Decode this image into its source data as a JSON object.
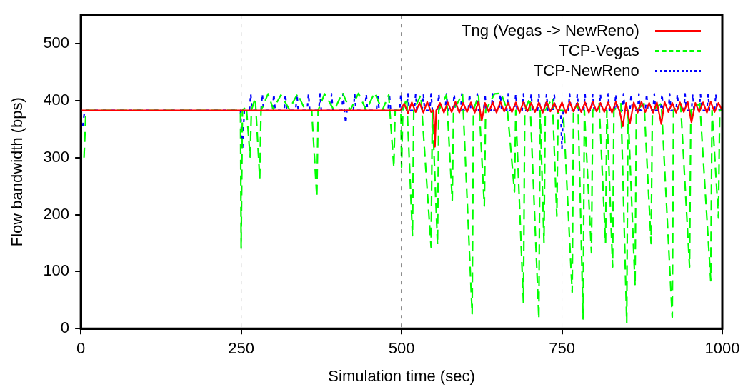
{
  "chart_data": {
    "type": "line",
    "xlabel": "Simulation time (sec)",
    "ylabel": "Flow bandwidth (bps)",
    "xlim": [
      0,
      1000
    ],
    "xticks": [
      0,
      250,
      500,
      750,
      1000
    ],
    "ylim": [
      0,
      550
    ],
    "yticks": [
      0,
      100,
      200,
      300,
      400,
      500
    ],
    "grid": false,
    "legend": "top right",
    "marker": "none",
    "ref_lines": [
      {
        "axis": "x",
        "value": 250,
        "color": "#000000",
        "line_style": "dotted"
      },
      {
        "axis": "x",
        "value": 500,
        "color": "#000000",
        "line_style": "dotted"
      },
      {
        "axis": "x",
        "value": 750,
        "color": "#000000",
        "line_style": "dotted"
      }
    ],
    "series": [
      {
        "name": "Tng (Vegas -> NewReno)",
        "color": "#ff0000",
        "line_style": "solid",
        "x": [
          0,
          498,
          504,
          510,
          516,
          522,
          528,
          534,
          540,
          546,
          550,
          552,
          554,
          560,
          566,
          572,
          578,
          584,
          590,
          596,
          602,
          608,
          614,
          620,
          625,
          630,
          636,
          642,
          648,
          654,
          660,
          666,
          672,
          678,
          684,
          690,
          696,
          702,
          708,
          714,
          720,
          726,
          732,
          738,
          744,
          750,
          756,
          762,
          768,
          774,
          780,
          786,
          792,
          798,
          804,
          810,
          816,
          822,
          828,
          834,
          840,
          845,
          850,
          856,
          862,
          868,
          874,
          880,
          886,
          892,
          898,
          905,
          910,
          916,
          922,
          928,
          934,
          940,
          946,
          952,
          958,
          964,
          970,
          976,
          982,
          988,
          994,
          1000
        ],
        "values": [
          383,
          383,
          395,
          378,
          397,
          380,
          396,
          379,
          398,
          380,
          383,
          319,
          383,
          396,
          379,
          397,
          380,
          398,
          379,
          396,
          380,
          397,
          379,
          398,
          365,
          396,
          380,
          397,
          379,
          398,
          381,
          396,
          380,
          397,
          379,
          398,
          381,
          396,
          380,
          397,
          379,
          398,
          381,
          396,
          380,
          397,
          379,
          398,
          381,
          396,
          380,
          397,
          379,
          398,
          381,
          396,
          380,
          397,
          379,
          398,
          381,
          355,
          396,
          360,
          397,
          379,
          398,
          380,
          396,
          379,
          397,
          359,
          398,
          380,
          396,
          379,
          397,
          380,
          398,
          362,
          396,
          380,
          397,
          379,
          398,
          380,
          396,
          383
        ]
      },
      {
        "name": "TCP-Vegas",
        "color": "#00ff00",
        "line_style": "dashed",
        "x": [
          5,
          8,
          249,
          250,
          252,
          258,
          264,
          266,
          272,
          279,
          281,
          292,
          300,
          312,
          325,
          338,
          350,
          360,
          368,
          370,
          380,
          395,
          408,
          420,
          433,
          445,
          458,
          470,
          480,
          488,
          490,
          499,
          500,
          502,
          508,
          517,
          519,
          530,
          546,
          548,
          556,
          558,
          570,
          579,
          581,
          595,
          610,
          612,
          620,
          629,
          631,
          645,
          655,
          665,
          676,
          678,
          690,
          692,
          700,
          714,
          716,
          722,
          724,
          735,
          742,
          744,
          752,
          766,
          768,
          775,
          783,
          785,
          796,
          798,
          808,
          818,
          820,
          829,
          831,
          842,
          851,
          853,
          864,
          866,
          878,
          889,
          891,
          905,
          922,
          924,
          935,
          949,
          951,
          965,
          982,
          984,
          994,
          996,
          1000
        ],
        "values": [
          300,
          383,
          383,
          141,
          383,
          390,
          301,
          383,
          405,
          263,
          383,
          412,
          385,
          410,
          385,
          412,
          383,
          383,
          230,
          383,
          412,
          383,
          414,
          383,
          413,
          383,
          414,
          383,
          410,
          283,
          383,
          383,
          283,
          383,
          405,
          163,
          383,
          410,
          143,
          383,
          147,
          383,
          410,
          225,
          383,
          412,
          26,
          383,
          410,
          215,
          383,
          412,
          413,
          383,
          240,
          383,
          44,
          383,
          405,
          17,
          383,
          151,
          383,
          405,
          197,
          383,
          383,
          63,
          383,
          395,
          17,
          383,
          133,
          383,
          395,
          149,
          383,
          108,
          383,
          395,
          11,
          383,
          75,
          383,
          395,
          149,
          383,
          395,
          20,
          383,
          395,
          108,
          383,
          395,
          84,
          383,
          194,
          383,
          383
        ]
      },
      {
        "name": "TCP-NewReno",
        "color": "#0000ff",
        "line_style": "dotted",
        "x": [
          3,
          6,
          249,
          252,
          255,
          263,
          265,
          267,
          281,
          283,
          285,
          299,
          301,
          303,
          317,
          319,
          321,
          335,
          337,
          339,
          353,
          355,
          357,
          371,
          373,
          375,
          389,
          391,
          393,
          407,
          409,
          411,
          413,
          415,
          425,
          427,
          429,
          443,
          445,
          447,
          461,
          463,
          465,
          479,
          481,
          483,
          497,
          499,
          501,
          508,
          510,
          512,
          520,
          522,
          524,
          532,
          534,
          536,
          544,
          546,
          548,
          556,
          558,
          560,
          568,
          570,
          572,
          580,
          582,
          584,
          592,
          594,
          596,
          604,
          606,
          608,
          616,
          618,
          620,
          628,
          630,
          632,
          640,
          642,
          644,
          652,
          654,
          656,
          664,
          666,
          668,
          676,
          678,
          680,
          688,
          690,
          692,
          700,
          702,
          704,
          712,
          714,
          716,
          724,
          726,
          728,
          736,
          738,
          740,
          748,
          750,
          752,
          760,
          762,
          764,
          772,
          774,
          776,
          784,
          786,
          788,
          796,
          798,
          800,
          808,
          810,
          812,
          820,
          822,
          824,
          832,
          834,
          836,
          844,
          846,
          848,
          856,
          858,
          860,
          868,
          870,
          872,
          880,
          882,
          884,
          892,
          894,
          896,
          904,
          906,
          908,
          916,
          918,
          920,
          928,
          930,
          932,
          940,
          942,
          944,
          952,
          954,
          956,
          964,
          966,
          968,
          976,
          978,
          980,
          988,
          990,
          992,
          1000
        ],
        "values": [
          355,
          383,
          383,
          313,
          383,
          383,
          412,
          383,
          383,
          412,
          383,
          383,
          412,
          383,
          383,
          412,
          383,
          383,
          412,
          383,
          383,
          412,
          383,
          383,
          412,
          383,
          383,
          412,
          383,
          383,
          412,
          383,
          360,
          383,
          383,
          412,
          383,
          383,
          412,
          383,
          383,
          412,
          383,
          383,
          412,
          383,
          383,
          412,
          383,
          383,
          412,
          383,
          383,
          412,
          383,
          383,
          412,
          383,
          383,
          412,
          383,
          383,
          412,
          383,
          383,
          412,
          383,
          383,
          412,
          383,
          383,
          412,
          383,
          383,
          412,
          383,
          383,
          412,
          383,
          383,
          412,
          383,
          383,
          412,
          383,
          383,
          412,
          383,
          383,
          412,
          383,
          383,
          412,
          383,
          383,
          412,
          383,
          383,
          412,
          383,
          383,
          412,
          383,
          383,
          412,
          383,
          383,
          412,
          383,
          383,
          315,
          383,
          383,
          412,
          383,
          383,
          412,
          383,
          383,
          412,
          383,
          383,
          412,
          383,
          383,
          412,
          383,
          383,
          412,
          383,
          383,
          412,
          383,
          383,
          412,
          383,
          383,
          412,
          383,
          383,
          412,
          383,
          383,
          412,
          383,
          383,
          412,
          383,
          383,
          412,
          383,
          383,
          412,
          383,
          383,
          412,
          383,
          383,
          412,
          383,
          383,
          412,
          383,
          383,
          412,
          383,
          383,
          412,
          383,
          383,
          412,
          383,
          385
        ]
      }
    ]
  }
}
